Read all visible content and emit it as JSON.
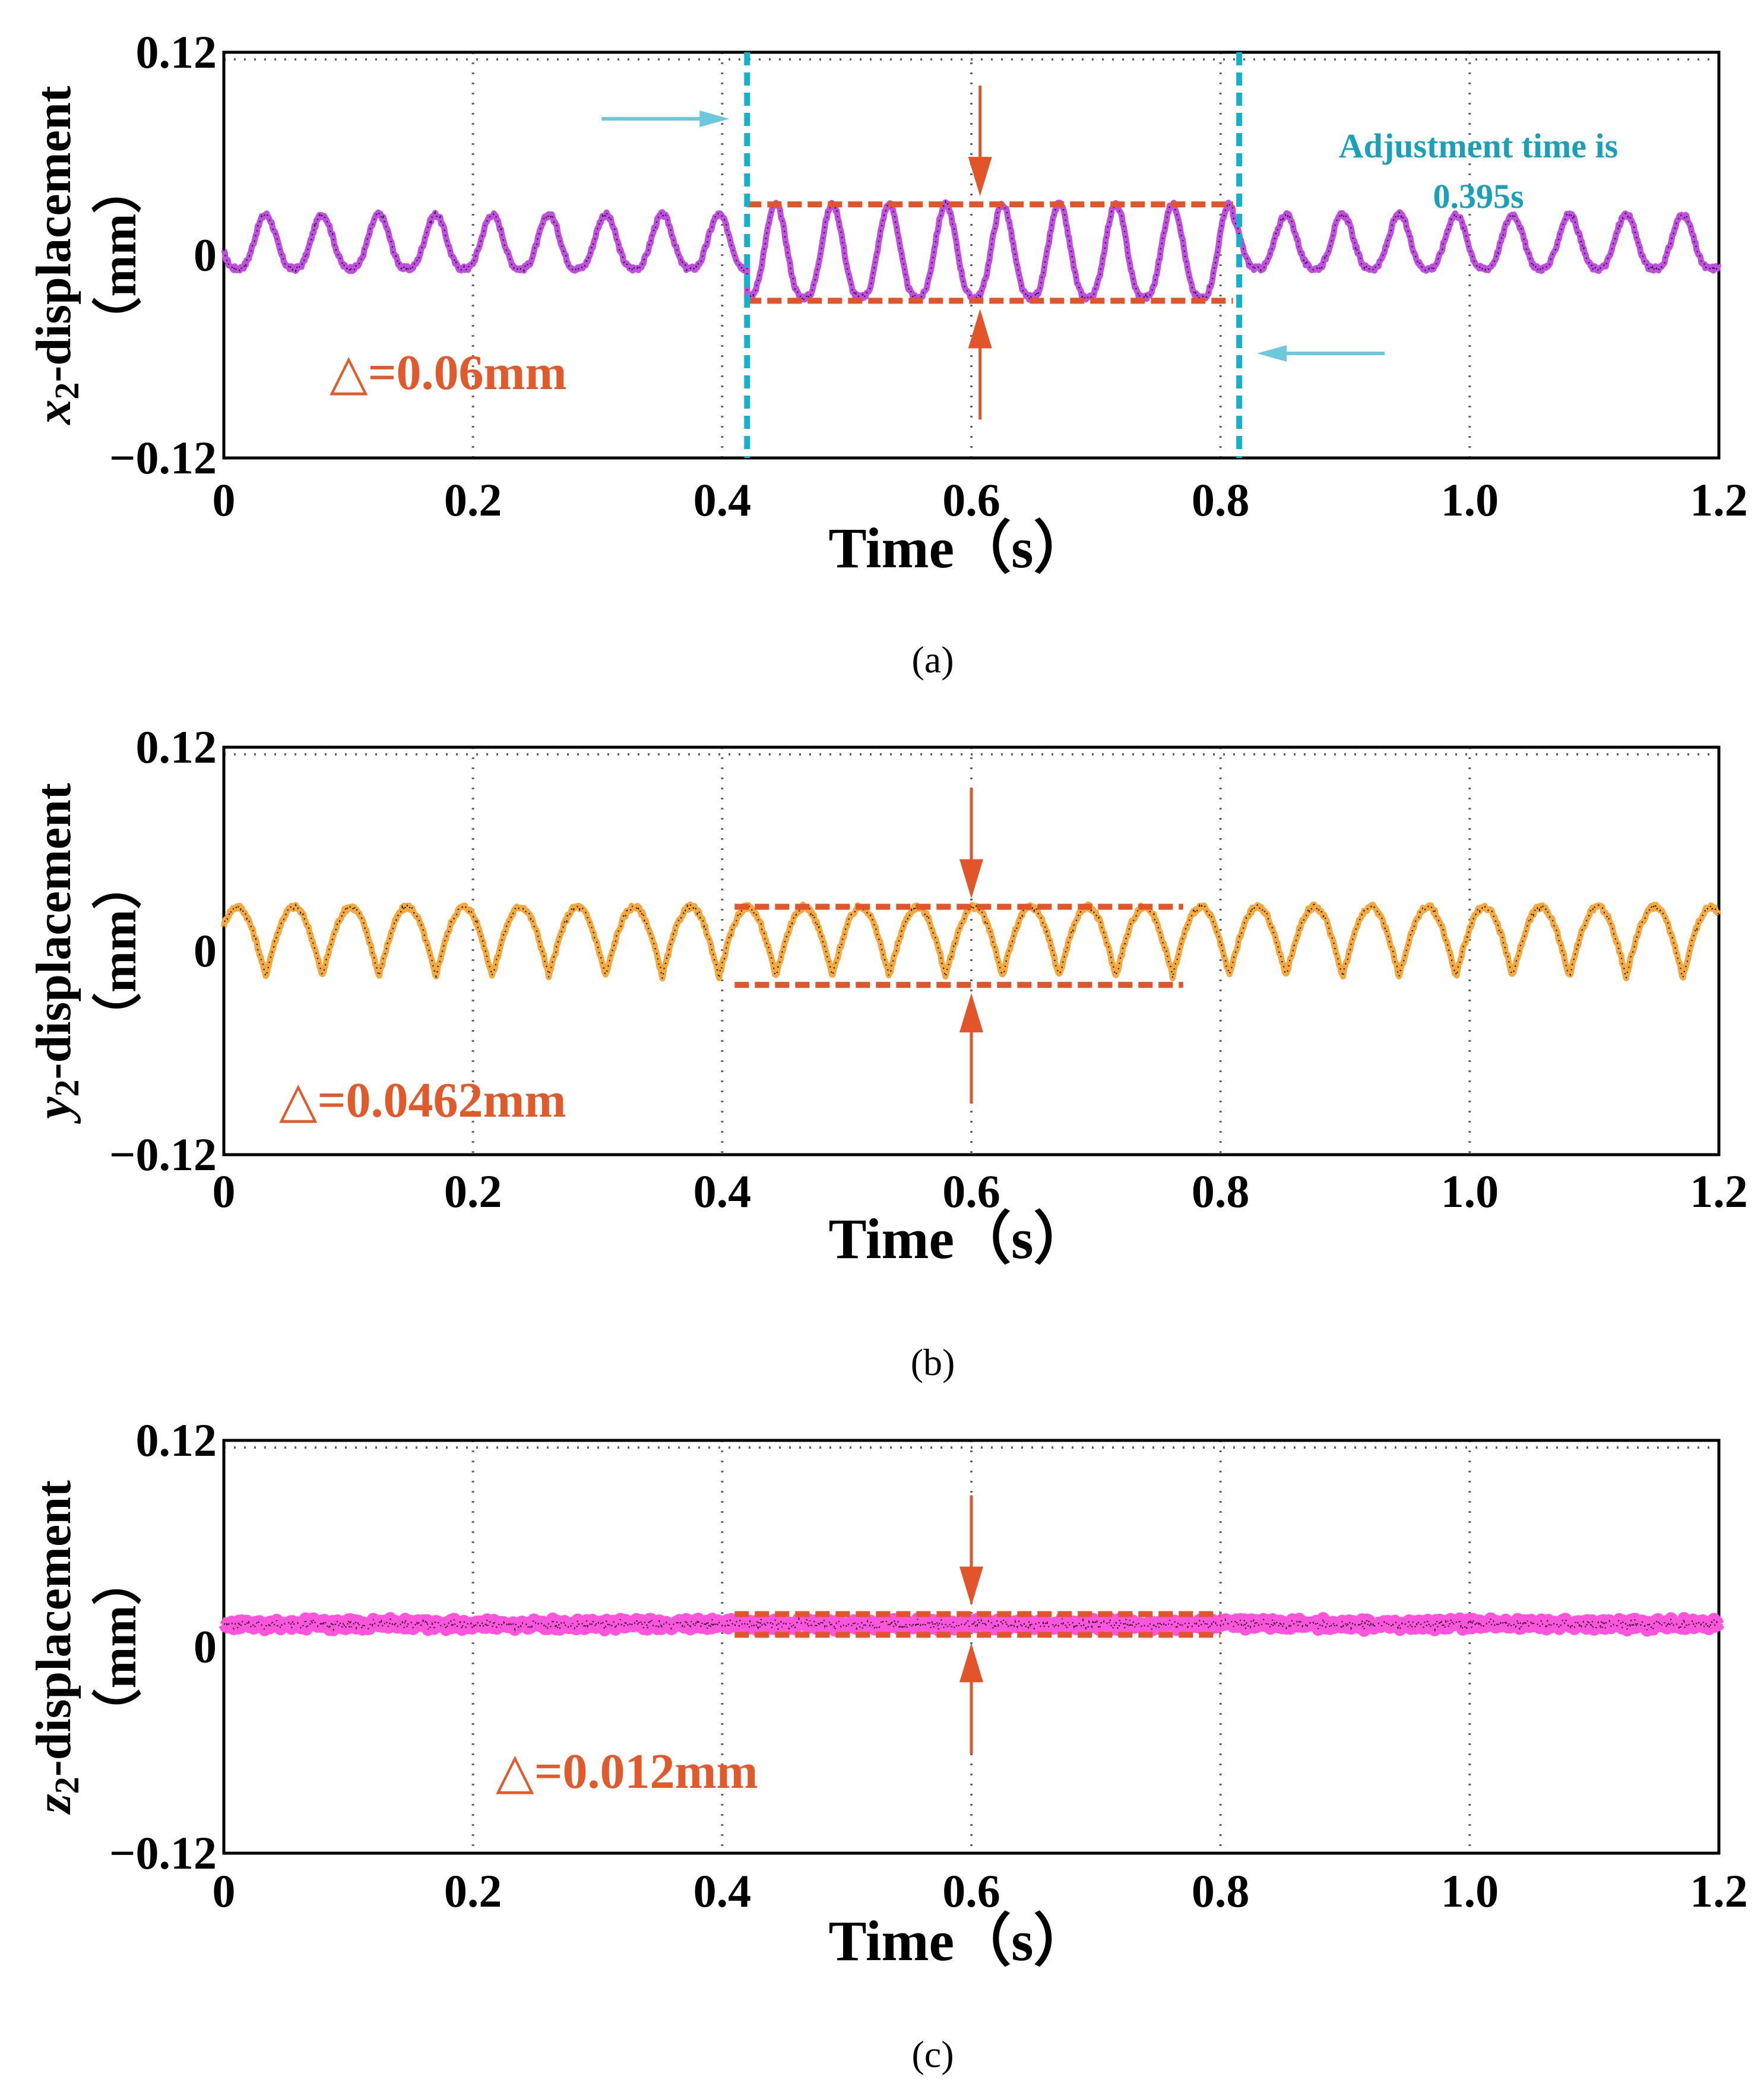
{
  "chart_data": [
    {
      "type": "line",
      "panel": "a",
      "caption": "(a)",
      "ylabel_var": "x",
      "ylabel_sub": "2",
      "ylabel_rest": "-displacement",
      "ylabel_unit": "（mm）",
      "xlabel": "Time（s）",
      "xlim": [
        0,
        1.2
      ],
      "ylim": [
        -0.12,
        0.12
      ],
      "xticks": [
        "0",
        "0.2",
        "0.4",
        "0.6",
        "0.8",
        "1.0",
        "1.2"
      ],
      "xtick_values": [
        0,
        0.2,
        0.4,
        0.6,
        0.8,
        1.0,
        1.2
      ],
      "yticks": [
        "0.12",
        "0",
        "−0.12"
      ],
      "ytick_values": [
        0.12,
        0,
        -0.12
      ],
      "series": [
        {
          "name": "x2 displacement",
          "color": "#c04ee0",
          "shape": "cusp",
          "segments": [
            {
              "t_start": 0,
              "t_end": 0.42,
              "period": 0.0455,
              "min": -0.008,
              "max": 0.024
            },
            {
              "t_start": 0.42,
              "t_end": 0.81,
              "period": 0.0455,
              "min": -0.025,
              "max": 0.03
            },
            {
              "t_start": 0.81,
              "t_end": 1.2,
              "period": 0.0455,
              "min": -0.008,
              "max": 0.024
            }
          ]
        }
      ],
      "annotations": {
        "delta_label": "△=0.06mm",
        "range_box": {
          "t_start": 0.42,
          "t_end": 0.81,
          "y_top": 0.03,
          "y_bottom": -0.027
        },
        "arrow_t": 0.607,
        "adjustment_lines": [
          0.42,
          0.815
        ],
        "adjustment_note_line1": "Adjustment time is",
        "adjustment_note_line2": "0.395s"
      }
    },
    {
      "type": "line",
      "panel": "b",
      "caption": "(b)",
      "ylabel_var": "y",
      "ylabel_sub": "2",
      "ylabel_rest": "-displacement",
      "ylabel_unit": "（mm）",
      "xlabel": "Time（s）",
      "xlim": [
        0,
        1.2
      ],
      "ylim": [
        -0.12,
        0.12
      ],
      "xticks": [
        "0",
        "0.2",
        "0.4",
        "0.6",
        "0.8",
        "1.0",
        "1.2"
      ],
      "xtick_values": [
        0,
        0.2,
        0.4,
        0.6,
        0.8,
        1.0,
        1.2
      ],
      "yticks": [
        "0.12",
        "0",
        "−0.12"
      ],
      "ytick_values": [
        0.12,
        0,
        -0.12
      ],
      "series": [
        {
          "name": "y2 displacement",
          "color": "#f5a83c",
          "shape": "arch",
          "segments": [
            {
              "t_start": 0,
              "t_end": 1.2,
              "period": 0.0455,
              "min": -0.015,
              "max": 0.026
            }
          ]
        }
      ],
      "annotations": {
        "delta_label": "△=0.0462mm",
        "range_box": {
          "t_start": 0.41,
          "t_end": 0.77,
          "y_top": 0.026,
          "y_bottom": -0.02
        },
        "arrow_t": 0.6
      }
    },
    {
      "type": "line",
      "panel": "c",
      "caption": "(c)",
      "ylabel_var": "z",
      "ylabel_sub": "2",
      "ylabel_rest": "-displacement",
      "ylabel_unit": "（mm）",
      "xlabel": "Time（s）",
      "xlim": [
        0,
        1.2
      ],
      "ylim": [
        -0.12,
        0.12
      ],
      "xticks": [
        "0",
        "0.2",
        "0.4",
        "0.6",
        "0.8",
        "1.0",
        "1.2"
      ],
      "xtick_values": [
        0,
        0.2,
        0.4,
        0.6,
        0.8,
        1.0,
        1.2
      ],
      "yticks": [
        "0.12",
        "0",
        "−0.12"
      ],
      "ytick_values": [
        0.12,
        0,
        -0.12
      ],
      "series": [
        {
          "name": "z2 displacement",
          "color": "#ff55dd",
          "shape": "flat",
          "segments": [
            {
              "t_start": 0,
              "t_end": 1.2,
              "period": 0.01,
              "min": 0.011,
              "max": 0.015
            }
          ]
        }
      ],
      "annotations": {
        "delta_label": "△=0.012mm",
        "range_box": {
          "t_start": 0.41,
          "t_end": 0.8,
          "y_top": 0.019,
          "y_bottom": 0.007
        },
        "arrow_t": 0.6
      }
    }
  ],
  "colors": {
    "annotation": "#e2552a",
    "delta_text": "#e05a2b",
    "adjustment_line": "#14b1cc",
    "adjustment_arrow": "#6cc8da"
  }
}
